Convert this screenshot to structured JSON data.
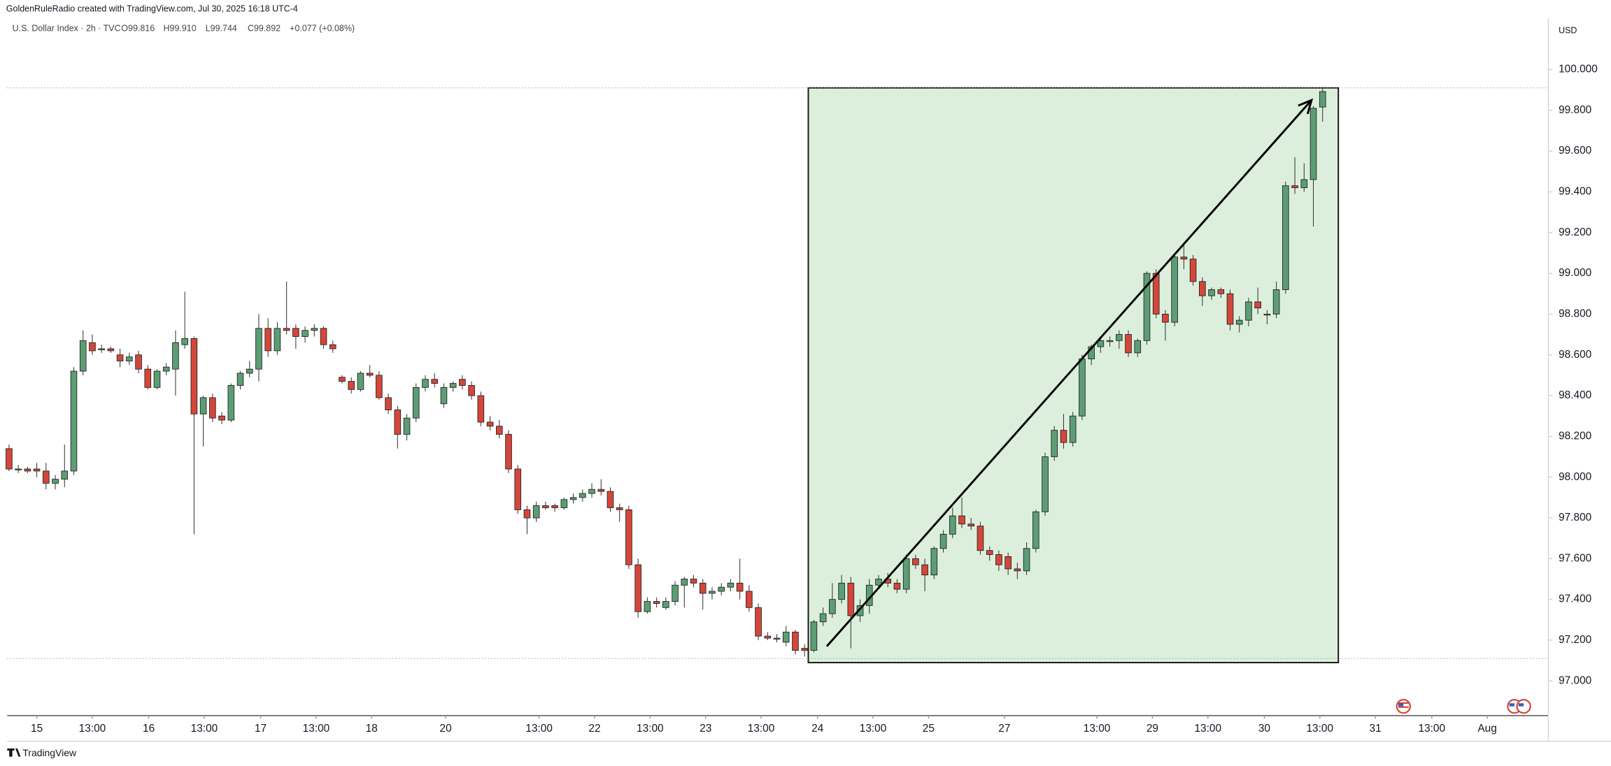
{
  "header": {
    "attribution": "GoldenRuleRadio created with TradingView.com, Jul 30, 2025 16:18 UTC-4",
    "footer": "TradingView"
  },
  "chart_data": {
    "type": "candlestick",
    "symbol": "U.S. Dollar Index · 2h · TVC",
    "ohlc_labels": [
      "O99.816",
      "H99.910",
      "L99.744",
      "C99.892"
    ],
    "change": "+0.077 (+0.08%)",
    "currency": "USD",
    "up_color": "#5c9e74",
    "down_color": "#d5463a",
    "open": [
      98.14,
      98.04,
      98.04,
      98.04,
      98.03,
      97.97,
      97.99,
      98.03,
      98.52,
      98.66,
      98.63,
      98.63,
      98.6,
      98.57,
      98.6,
      98.53,
      98.44,
      98.52,
      98.53,
      98.65,
      98.68,
      98.31,
      98.39,
      98.3,
      98.28,
      98.45,
      98.51,
      98.53,
      98.73,
      98.62,
      98.73,
      98.73,
      98.69,
      98.72,
      98.73,
      98.65,
      98.49,
      98.47,
      98.43,
      98.51,
      98.5,
      98.39,
      98.33,
      98.21,
      98.29,
      98.44,
      98.48,
      98.36,
      98.44,
      98.48,
      98.45,
      98.4,
      98.27,
      98.25,
      98.21,
      98.04,
      97.84,
      97.8,
      97.86,
      97.86,
      97.85,
      97.89,
      97.9,
      97.92,
      97.94,
      97.93,
      97.85,
      97.84,
      97.57,
      97.34,
      97.39,
      97.36,
      97.39,
      97.47,
      97.5,
      97.48,
      97.43,
      97.44,
      97.46,
      97.48,
      97.44,
      97.36,
      97.22,
      97.21,
      97.19,
      97.24,
      97.16,
      97.15,
      97.29,
      97.33,
      97.4,
      97.48,
      97.32,
      97.37,
      97.47,
      97.5,
      97.48,
      97.45,
      97.6,
      97.57,
      97.52,
      97.65,
      97.72,
      97.81,
      97.77,
      97.76,
      97.64,
      97.62,
      97.61,
      97.55,
      97.54,
      97.65,
      97.83,
      98.1,
      98.23,
      98.17,
      98.3,
      98.58,
      98.64,
      98.67,
      98.67,
      98.7,
      98.61,
      98.67,
      99.0,
      98.8,
      98.76,
      99.08,
      99.07,
      98.96,
      98.89,
      98.92,
      98.9,
      98.75,
      98.77,
      98.86,
      98.8,
      98.8,
      98.92,
      99.43,
      99.42,
      99.46,
      99.816
    ],
    "high": [
      98.16,
      98.06,
      98.05,
      98.07,
      98.07,
      98.01,
      98.16,
      98.54,
      98.72,
      98.7,
      98.65,
      98.64,
      98.63,
      98.61,
      98.62,
      98.55,
      98.53,
      98.56,
      98.72,
      98.91,
      98.69,
      98.4,
      98.41,
      98.32,
      98.46,
      98.52,
      98.57,
      98.8,
      98.78,
      98.76,
      98.96,
      98.75,
      98.74,
      98.75,
      98.74,
      98.67,
      98.5,
      98.49,
      98.52,
      98.55,
      98.52,
      98.41,
      98.35,
      98.31,
      98.46,
      98.5,
      98.51,
      98.46,
      98.47,
      98.5,
      98.47,
      98.42,
      98.3,
      98.28,
      98.23,
      98.06,
      97.86,
      97.88,
      97.88,
      97.87,
      97.9,
      97.92,
      97.94,
      97.97,
      97.99,
      97.95,
      97.87,
      97.86,
      97.6,
      97.41,
      97.41,
      97.41,
      97.49,
      97.51,
      97.52,
      97.5,
      97.46,
      97.48,
      97.5,
      97.6,
      97.47,
      97.38,
      97.24,
      97.23,
      97.27,
      97.25,
      97.18,
      97.3,
      97.36,
      97.48,
      97.52,
      97.51,
      97.4,
      97.5,
      97.52,
      97.53,
      97.5,
      97.62,
      97.62,
      97.6,
      97.66,
      97.74,
      97.85,
      97.9,
      97.8,
      97.78,
      97.66,
      97.64,
      97.63,
      97.58,
      97.68,
      97.84,
      98.12,
      98.25,
      98.31,
      98.32,
      98.6,
      98.65,
      98.68,
      98.69,
      98.72,
      98.72,
      98.68,
      99.01,
      99.02,
      98.82,
      99.1,
      99.14,
      99.09,
      98.98,
      98.93,
      98.93,
      98.92,
      98.79,
      98.88,
      98.93,
      98.82,
      98.96,
      99.45,
      99.57,
      99.54,
      99.82,
      99.91
    ],
    "low": [
      98.03,
      98.02,
      98.02,
      98.0,
      97.94,
      97.94,
      97.95,
      98.01,
      98.5,
      98.6,
      98.61,
      98.61,
      98.54,
      98.55,
      98.51,
      98.43,
      98.43,
      98.5,
      98.4,
      98.63,
      97.72,
      98.15,
      98.27,
      98.26,
      98.27,
      98.43,
      98.49,
      98.47,
      98.59,
      98.6,
      98.7,
      98.63,
      98.66,
      98.69,
      98.63,
      98.61,
      98.46,
      98.41,
      98.42,
      98.49,
      98.38,
      98.31,
      98.14,
      98.18,
      98.27,
      98.42,
      98.44,
      98.34,
      98.42,
      98.43,
      98.38,
      98.25,
      98.23,
      98.19,
      98.02,
      97.82,
      97.72,
      97.78,
      97.84,
      97.83,
      97.84,
      97.87,
      97.88,
      97.9,
      97.91,
      97.83,
      97.78,
      97.55,
      97.31,
      97.33,
      97.36,
      97.35,
      97.37,
      97.36,
      97.46,
      97.35,
      97.4,
      97.42,
      97.44,
      97.4,
      97.34,
      97.2,
      97.2,
      97.19,
      97.17,
      97.13,
      97.12,
      97.14,
      97.27,
      97.31,
      97.38,
      97.16,
      97.29,
      97.33,
      97.45,
      97.46,
      97.43,
      97.43,
      97.55,
      97.44,
      97.5,
      97.63,
      97.7,
      97.75,
      97.74,
      97.62,
      97.59,
      97.54,
      97.52,
      97.5,
      97.52,
      97.63,
      97.81,
      98.08,
      98.14,
      98.15,
      98.28,
      98.55,
      98.61,
      98.64,
      98.63,
      98.59,
      98.59,
      98.65,
      98.78,
      98.67,
      98.74,
      99.02,
      98.94,
      98.84,
      98.87,
      98.88,
      98.72,
      98.71,
      98.74,
      98.8,
      98.75,
      98.78,
      98.9,
      99.39,
      99.4,
      99.23,
      99.744
    ],
    "close": [
      98.04,
      98.04,
      98.03,
      98.03,
      97.97,
      97.99,
      98.03,
      98.52,
      98.67,
      98.62,
      98.63,
      98.62,
      98.57,
      98.59,
      98.53,
      98.44,
      98.52,
      98.54,
      98.66,
      98.68,
      98.31,
      98.39,
      98.29,
      98.28,
      98.45,
      98.51,
      98.53,
      98.73,
      98.62,
      98.73,
      98.72,
      98.69,
      98.72,
      98.73,
      98.65,
      98.63,
      98.47,
      98.43,
      98.51,
      98.5,
      98.39,
      98.33,
      98.21,
      98.29,
      98.44,
      98.48,
      98.46,
      98.44,
      98.46,
      98.45,
      98.4,
      98.27,
      98.25,
      98.21,
      98.04,
      97.84,
      97.8,
      97.86,
      97.85,
      97.85,
      97.89,
      97.9,
      97.92,
      97.94,
      97.93,
      97.85,
      97.84,
      97.57,
      97.34,
      97.39,
      97.38,
      97.39,
      97.47,
      97.5,
      97.48,
      97.43,
      97.44,
      97.46,
      97.48,
      97.44,
      97.36,
      97.22,
      97.21,
      97.21,
      97.24,
      97.15,
      97.15,
      97.29,
      97.33,
      97.4,
      97.48,
      97.32,
      97.37,
      97.47,
      97.5,
      97.48,
      97.45,
      97.6,
      97.57,
      97.52,
      97.65,
      97.72,
      97.81,
      97.77,
      97.76,
      97.64,
      97.62,
      97.57,
      97.55,
      97.54,
      97.65,
      97.83,
      98.1,
      98.23,
      98.17,
      98.3,
      98.58,
      98.64,
      98.67,
      98.67,
      98.7,
      98.61,
      98.67,
      99.0,
      98.8,
      98.76,
      99.08,
      99.07,
      98.96,
      98.89,
      98.92,
      98.9,
      98.75,
      98.77,
      98.86,
      98.83,
      98.8,
      98.92,
      99.43,
      99.42,
      99.46,
      99.81,
      99.892
    ],
    "xlim": [
      -0.2,
      166.4
    ],
    "xticks": [
      {
        "value": 3,
        "label": "15"
      },
      {
        "value": 9,
        "label": "13:00"
      },
      {
        "value": 15.1,
        "label": "16"
      },
      {
        "value": 21.1,
        "label": "13:00"
      },
      {
        "value": 27.2,
        "label": "17"
      },
      {
        "value": 33.2,
        "label": "13:00"
      },
      {
        "value": 39.2,
        "label": "18"
      },
      {
        "value": 47.2,
        "label": "20"
      },
      {
        "value": 57.3,
        "label": "13:00"
      },
      {
        "value": 63.3,
        "label": "22"
      },
      {
        "value": 69.3,
        "label": "13:00"
      },
      {
        "value": 75.3,
        "label": "23"
      },
      {
        "value": 81.3,
        "label": "13:00"
      },
      {
        "value": 87.4,
        "label": "24"
      },
      {
        "value": 93.4,
        "label": "13:00"
      },
      {
        "value": 99.4,
        "label": "25"
      },
      {
        "value": 107.6,
        "label": "27"
      },
      {
        "value": 117.6,
        "label": "13:00"
      },
      {
        "value": 123.6,
        "label": "29"
      },
      {
        "value": 129.6,
        "label": "13:00"
      },
      {
        "value": 135.7,
        "label": "30"
      },
      {
        "value": 141.7,
        "label": "13:00"
      },
      {
        "value": 147.7,
        "label": "31"
      },
      {
        "value": 153.8,
        "label": "13:00"
      },
      {
        "value": 159.8,
        "label": "Aug"
      }
    ],
    "ylim": [
      96.83,
      100.25
    ],
    "yticks": [
      {
        "value": 97,
        "label": "97.000"
      },
      {
        "value": 97.2,
        "label": "97.200"
      },
      {
        "value": 97.4,
        "label": "97.400"
      },
      {
        "value": 97.6,
        "label": "97.600"
      },
      {
        "value": 97.8,
        "label": "97.800"
      },
      {
        "value": 98,
        "label": "98.000"
      },
      {
        "value": 98.2,
        "label": "98.200"
      },
      {
        "value": 98.4,
        "label": "98.400"
      },
      {
        "value": 98.6,
        "label": "98.600"
      },
      {
        "value": 98.8,
        "label": "98.800"
      },
      {
        "value": 99,
        "label": "99.000"
      },
      {
        "value": 99.2,
        "label": "99.200"
      },
      {
        "value": 99.4,
        "label": "99.400"
      },
      {
        "value": 99.6,
        "label": "99.600"
      },
      {
        "value": 99.8,
        "label": "99.800"
      },
      {
        "value": 100,
        "label": "100.000"
      }
    ],
    "price_lines": [
      99.91,
      97.11
    ],
    "highlight_box": {
      "x": [
        86.4,
        143.7
      ],
      "y": [
        97.09,
        99.91
      ],
      "color": "#dcefdc"
    },
    "arrow": {
      "x": [
        88.4,
        140.8
      ],
      "y": [
        97.17,
        99.85
      ]
    }
  }
}
